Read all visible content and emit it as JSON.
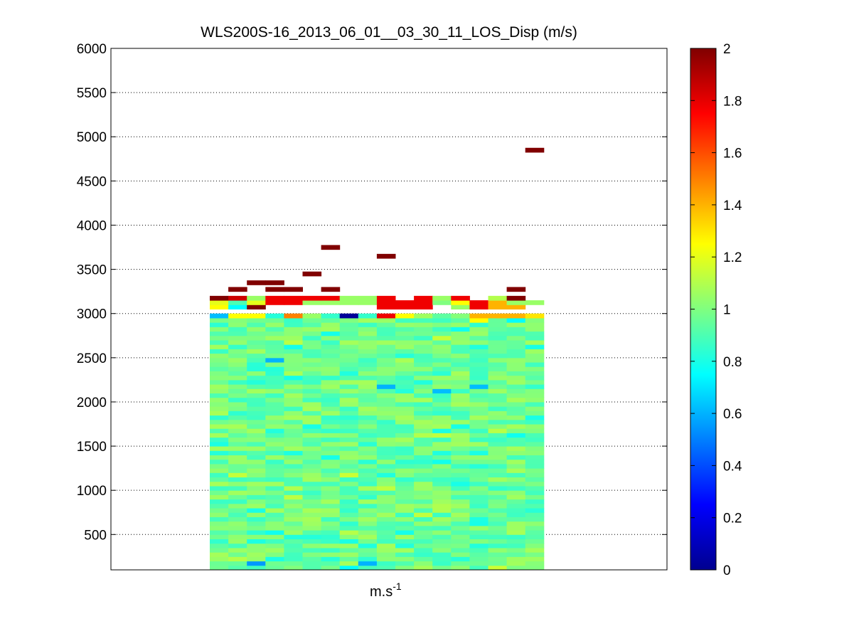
{
  "chart_data": {
    "type": "heatmap",
    "title": "WLS200S-16_2013_06_01__03_30_11_LOS_Disp (m/s)",
    "xlabel_base": "m.s",
    "xlabel_exponent": "-1",
    "ylabel": "",
    "ylim": [
      100,
      6000
    ],
    "yticks": [
      500,
      1000,
      1500,
      2000,
      2500,
      3000,
      3500,
      4000,
      4500,
      5000,
      5500,
      6000
    ],
    "grid": "horizontal dotted",
    "colormap": "jet",
    "colorbar": {
      "lim": [
        0,
        2
      ],
      "ticks": [
        "0",
        "0.2",
        "0.4",
        "0.6",
        "0.8",
        "1",
        "1.2",
        "1.4",
        "1.6",
        "1.8",
        "2"
      ]
    },
    "columns": 18,
    "row_height_m": 50,
    "body_top_m": 3000,
    "body_seed": 7,
    "top_cells": [
      {
        "c": 0,
        "y": 3125,
        "v": 1.2
      },
      {
        "c": 1,
        "y": 3125,
        "v": 0.9
      },
      {
        "c": 2,
        "y": 3125,
        "v": 1.2
      },
      {
        "c": 3,
        "y": 3125,
        "v": 1.78
      },
      {
        "c": 4,
        "y": 3125,
        "v": 1.78
      },
      {
        "c": 5,
        "y": 3125,
        "v": 1.05
      },
      {
        "c": 6,
        "y": 3125,
        "v": 1.05
      },
      {
        "c": 7,
        "y": 3125,
        "v": 1.05
      },
      {
        "c": 8,
        "y": 3125,
        "v": 1.05
      },
      {
        "c": 9,
        "y": 3125,
        "v": 1.78
      },
      {
        "c": 10,
        "y": 3125,
        "v": 1.78
      },
      {
        "c": 11,
        "y": 3125,
        "v": 1.78
      },
      {
        "c": 12,
        "y": 3125,
        "v": 1.0
      },
      {
        "c": 13,
        "y": 3125,
        "v": 1.25
      },
      {
        "c": 14,
        "y": 3125,
        "v": 1.78
      },
      {
        "c": 15,
        "y": 3125,
        "v": 1.4
      },
      {
        "c": 16,
        "y": 3125,
        "v": 1.05
      },
      {
        "c": 17,
        "y": 3125,
        "v": 1.05
      },
      {
        "c": 0,
        "y": 3175,
        "v": 2
      },
      {
        "c": 1,
        "y": 3175,
        "v": 1.85
      },
      {
        "c": 2,
        "y": 3175,
        "v": 1.05
      },
      {
        "c": 3,
        "y": 3175,
        "v": 1.78
      },
      {
        "c": 4,
        "y": 3175,
        "v": 1.78
      },
      {
        "c": 5,
        "y": 3175,
        "v": 1.78
      },
      {
        "c": 6,
        "y": 3175,
        "v": 1.78
      },
      {
        "c": 7,
        "y": 3175,
        "v": 1.05
      },
      {
        "c": 8,
        "y": 3175,
        "v": 1.05
      },
      {
        "c": 9,
        "y": 3175,
        "v": 1.78
      },
      {
        "c": 11,
        "y": 3175,
        "v": 1.78
      },
      {
        "c": 12,
        "y": 3175,
        "v": 1.05
      },
      {
        "c": 13,
        "y": 3175,
        "v": 1.78
      },
      {
        "c": 15,
        "y": 3175,
        "v": 1.1
      },
      {
        "c": 16,
        "y": 3175,
        "v": 2
      },
      {
        "c": 1,
        "y": 3275,
        "v": 2
      },
      {
        "c": 3,
        "y": 3275,
        "v": 2
      },
      {
        "c": 4,
        "y": 3275,
        "v": 2
      },
      {
        "c": 6,
        "y": 3275,
        "v": 2
      },
      {
        "c": 16,
        "y": 3275,
        "v": 2
      },
      {
        "c": 2,
        "y": 3350,
        "v": 2
      },
      {
        "c": 3,
        "y": 3350,
        "v": 2
      },
      {
        "c": 5,
        "y": 3450,
        "v": 2
      },
      {
        "c": 9,
        "y": 3650,
        "v": 2
      },
      {
        "c": 6,
        "y": 3750,
        "v": 2
      },
      {
        "c": 17,
        "y": 4850,
        "v": 2
      }
    ],
    "fixed_cells": [
      {
        "c": 0,
        "y": 3075,
        "v": 1.25
      },
      {
        "c": 1,
        "y": 3075,
        "v": 0.75
      },
      {
        "c": 2,
        "y": 3075,
        "v": 2
      },
      {
        "c": 9,
        "y": 3075,
        "v": 1.78
      },
      {
        "c": 10,
        "y": 3075,
        "v": 1.78
      },
      {
        "c": 11,
        "y": 3075,
        "v": 1.78
      },
      {
        "c": 13,
        "y": 3075,
        "v": 1.05
      },
      {
        "c": 14,
        "y": 3075,
        "v": 1.78
      },
      {
        "c": 15,
        "y": 3075,
        "v": 1.4
      },
      {
        "c": 16,
        "y": 3075,
        "v": 1.4
      },
      {
        "c": 0,
        "y": 2975,
        "v": 0.62
      },
      {
        "c": 1,
        "y": 2975,
        "v": 1.25
      },
      {
        "c": 2,
        "y": 2975,
        "v": 1.25
      },
      {
        "c": 3,
        "y": 2975,
        "v": 0.82
      },
      {
        "c": 4,
        "y": 2975,
        "v": 1.5
      },
      {
        "c": 5,
        "y": 2975,
        "v": 1.05
      },
      {
        "c": 6,
        "y": 2975,
        "v": 0.85
      },
      {
        "c": 7,
        "y": 2975,
        "v": 0.05
      },
      {
        "c": 8,
        "y": 2975,
        "v": 0.85
      },
      {
        "c": 9,
        "y": 2975,
        "v": 1.78
      },
      {
        "c": 10,
        "y": 2975,
        "v": 1.25
      },
      {
        "c": 14,
        "y": 2975,
        "v": 1.4
      },
      {
        "c": 15,
        "y": 2975,
        "v": 1.4
      },
      {
        "c": 16,
        "y": 2975,
        "v": 1.4
      },
      {
        "c": 17,
        "y": 2975,
        "v": 1.3
      },
      {
        "c": 7,
        "y": 2925,
        "v": 1.0
      },
      {
        "c": 9,
        "y": 2925,
        "v": 1.05
      },
      {
        "c": 14,
        "y": 2925,
        "v": 1.25
      },
      {
        "c": 16,
        "y": 2925,
        "v": 0.75
      },
      {
        "c": 3,
        "y": 2475,
        "v": 0.6
      },
      {
        "c": 9,
        "y": 2175,
        "v": 0.6
      },
      {
        "c": 12,
        "y": 2125,
        "v": 0.62
      },
      {
        "c": 14,
        "y": 2175,
        "v": 0.62
      },
      {
        "c": 2,
        "y": 175,
        "v": 0.55
      },
      {
        "c": 8,
        "y": 175,
        "v": 0.6
      },
      {
        "c": 7,
        "y": 125,
        "v": 0.75
      },
      {
        "c": 15,
        "y": 125,
        "v": 1.15
      }
    ]
  }
}
